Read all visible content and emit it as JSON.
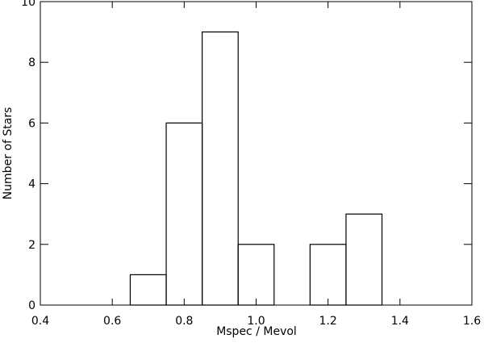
{
  "chart_data": {
    "type": "histogram",
    "xlabel": "Mspec / Mevol",
    "ylabel": "Number of Stars",
    "bins": [
      0.65,
      0.75,
      0.85,
      0.95,
      1.05,
      1.15,
      1.25,
      1.35
    ],
    "counts": [
      1,
      6,
      9,
      2,
      0,
      2,
      3
    ],
    "color": "#000000",
    "xlim": [
      0.4,
      1.6
    ],
    "xticks": [
      0.4,
      0.6,
      0.8,
      {
        "value": 1,
        "label": "1.0"
      },
      1.2,
      1.4,
      1.6
    ],
    "ylim": [
      0,
      10
    ],
    "yticks": [
      0,
      2,
      4,
      6,
      8,
      10
    ]
  }
}
